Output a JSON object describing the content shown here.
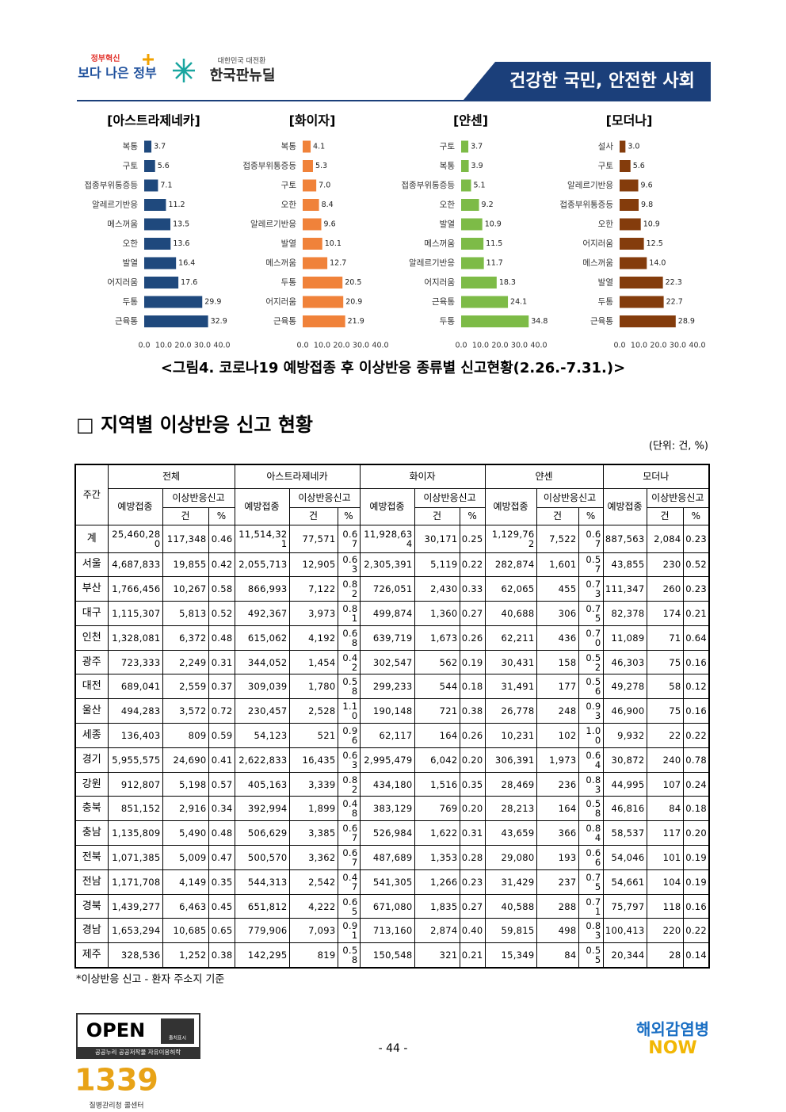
{
  "header": {
    "logo1_small": "정부혁신",
    "logo1": "보다 나은 정부",
    "logo2_small": "대한민국 대전환",
    "logo2": "한국판뉴딜",
    "slogan": "건강한 국민, 안전한 사회"
  },
  "chart_data": [
    {
      "type": "barh",
      "title": "[아스트라제네카]",
      "color": "#1f497d",
      "categories": [
        "복통",
        "구토",
        "접종부위통증등",
        "알레르기반응",
        "메스꺼움",
        "오한",
        "발열",
        "어지러움",
        "두통",
        "근육통"
      ],
      "values": [
        3.7,
        5.6,
        7.1,
        11.2,
        13.5,
        13.6,
        16.4,
        17.6,
        29.9,
        32.9
      ],
      "xlim": [
        0,
        40
      ],
      "xticks": [
        {
          "value": 0,
          "label": "0.0"
        },
        {
          "value": 10,
          "label": "10.0"
        },
        {
          "value": 20,
          "label": "20.0"
        },
        {
          "value": 30,
          "label": "30.0"
        },
        {
          "value": 40,
          "label": "40.0"
        }
      ]
    },
    {
      "type": "barh",
      "title": "[화이자]",
      "color": "#f0823a",
      "categories": [
        "복통",
        "접종부위통증등",
        "구토",
        "오한",
        "알레르기반응",
        "발열",
        "메스꺼움",
        "두통",
        "어지러움",
        "근육통"
      ],
      "values": [
        4.1,
        5.3,
        7,
        8.4,
        9.6,
        10.1,
        12.7,
        20.5,
        20.9,
        21.9
      ],
      "value_labels": [
        "4.1",
        "5.3",
        "7.0",
        "8.4",
        "9.6",
        "10.1",
        "12.7",
        "20.5",
        "20.9",
        "21.9"
      ],
      "xlim": [
        0,
        40
      ],
      "xticks": [
        {
          "value": 0,
          "label": "0.0"
        },
        {
          "value": 10,
          "label": "10.0"
        },
        {
          "value": 20,
          "label": "20.0"
        },
        {
          "value": 30,
          "label": "30.0"
        },
        {
          "value": 40,
          "label": "40.0"
        }
      ]
    },
    {
      "type": "barh",
      "title": "[얀센]",
      "color": "#7dbb47",
      "categories": [
        "구토",
        "복통",
        "접종부위통증등",
        "오한",
        "발열",
        "메스꺼움",
        "알레르기반응",
        "어지러움",
        "근육통",
        "두통"
      ],
      "values": [
        3.7,
        3.9,
        5.1,
        9.2,
        10.9,
        11.5,
        11.7,
        18.3,
        24.1,
        34.8
      ],
      "xlim": [
        0,
        40
      ],
      "xticks": [
        {
          "value": 0,
          "label": "0.0"
        },
        {
          "value": 10,
          "label": "10.0"
        },
        {
          "value": 20,
          "label": "20.0"
        },
        {
          "value": 30,
          "label": "30.0"
        },
        {
          "value": 40,
          "label": "40.0"
        }
      ]
    },
    {
      "type": "barh",
      "title": "[모더나]",
      "color": "#843c0c",
      "categories": [
        "설사",
        "구토",
        "알레르기반응",
        "접종부위통증등",
        "오한",
        "어지러움",
        "메스꺼움",
        "발열",
        "두통",
        "근육통"
      ],
      "values": [
        3,
        5.6,
        9.6,
        9.8,
        10.9,
        12.5,
        14,
        22.3,
        22.7,
        28.9
      ],
      "value_labels": [
        "3.0",
        "5.6",
        "9.6",
        "9.8",
        "10.9",
        "12.5",
        "14.0",
        "22.3",
        "22.7",
        "28.9"
      ],
      "xlim": [
        0,
        40
      ],
      "xticks": [
        {
          "value": 0,
          "label": "0.0"
        },
        {
          "value": 10,
          "label": "10.0"
        },
        {
          "value": 20,
          "label": "20.0"
        },
        {
          "value": 30,
          "label": "30.0"
        },
        {
          "value": 40,
          "label": "40.0"
        }
      ]
    }
  ],
  "caption": "<그림4. 코로나19 예방접종 후 이상반응 종류별 신고현황(2.26.-7.31.)>",
  "section_title": "□ 지역별 이상반응 신고 현황",
  "unit": "(단위: 건, %)",
  "table": {
    "corner": "주간",
    "groups": [
      "전체",
      "아스트라제네카",
      "화이자",
      "얀센",
      "모더나"
    ],
    "sub": [
      "예방접종",
      "이상반응신고"
    ],
    "subsub": [
      "건",
      "%"
    ],
    "rows": [
      [
        "계",
        "25,460,280",
        "117,348",
        "0.46",
        "11,514,321",
        "77,571",
        "0.67",
        "11,928,634",
        "30,171",
        "0.25",
        "1,129,762",
        "7,522",
        "0.67",
        "887,563",
        "2,084",
        "0.23"
      ],
      [
        "서울",
        "4,687,833",
        "19,855",
        "0.42",
        "2,055,713",
        "12,905",
        "0.63",
        "2,305,391",
        "5,119",
        "0.22",
        "282,874",
        "1,601",
        "0.57",
        "43,855",
        "230",
        "0.52"
      ],
      [
        "부산",
        "1,766,456",
        "10,267",
        "0.58",
        "866,993",
        "7,122",
        "0.82",
        "726,051",
        "2,430",
        "0.33",
        "62,065",
        "455",
        "0.73",
        "111,347",
        "260",
        "0.23"
      ],
      [
        "대구",
        "1,115,307",
        "5,813",
        "0.52",
        "492,367",
        "3,973",
        "0.81",
        "499,874",
        "1,360",
        "0.27",
        "40,688",
        "306",
        "0.75",
        "82,378",
        "174",
        "0.21"
      ],
      [
        "인천",
        "1,328,081",
        "6,372",
        "0.48",
        "615,062",
        "4,192",
        "0.68",
        "639,719",
        "1,673",
        "0.26",
        "62,211",
        "436",
        "0.70",
        "11,089",
        "71",
        "0.64"
      ],
      [
        "광주",
        "723,333",
        "2,249",
        "0.31",
        "344,052",
        "1,454",
        "0.42",
        "302,547",
        "562",
        "0.19",
        "30,431",
        "158",
        "0.52",
        "46,303",
        "75",
        "0.16"
      ],
      [
        "대전",
        "689,041",
        "2,559",
        "0.37",
        "309,039",
        "1,780",
        "0.58",
        "299,233",
        "544",
        "0.18",
        "31,491",
        "177",
        "0.56",
        "49,278",
        "58",
        "0.12"
      ],
      [
        "울산",
        "494,283",
        "3,572",
        "0.72",
        "230,457",
        "2,528",
        "1.10",
        "190,148",
        "721",
        "0.38",
        "26,778",
        "248",
        "0.93",
        "46,900",
        "75",
        "0.16"
      ],
      [
        "세종",
        "136,403",
        "809",
        "0.59",
        "54,123",
        "521",
        "0.96",
        "62,117",
        "164",
        "0.26",
        "10,231",
        "102",
        "1.00",
        "9,932",
        "22",
        "0.22"
      ],
      [
        "경기",
        "5,955,575",
        "24,690",
        "0.41",
        "2,622,833",
        "16,435",
        "0.63",
        "2,995,479",
        "6,042",
        "0.20",
        "306,391",
        "1,973",
        "0.64",
        "30,872",
        "240",
        "0.78"
      ],
      [
        "강원",
        "912,807",
        "5,198",
        "0.57",
        "405,163",
        "3,339",
        "0.82",
        "434,180",
        "1,516",
        "0.35",
        "28,469",
        "236",
        "0.83",
        "44,995",
        "107",
        "0.24"
      ],
      [
        "충북",
        "851,152",
        "2,916",
        "0.34",
        "392,994",
        "1,899",
        "0.48",
        "383,129",
        "769",
        "0.20",
        "28,213",
        "164",
        "0.58",
        "46,816",
        "84",
        "0.18"
      ],
      [
        "충남",
        "1,135,809",
        "5,490",
        "0.48",
        "506,629",
        "3,385",
        "0.67",
        "526,984",
        "1,622",
        "0.31",
        "43,659",
        "366",
        "0.84",
        "58,537",
        "117",
        "0.20"
      ],
      [
        "전북",
        "1,071,385",
        "5,009",
        "0.47",
        "500,570",
        "3,362",
        "0.67",
        "487,689",
        "1,353",
        "0.28",
        "29,080",
        "193",
        "0.66",
        "54,046",
        "101",
        "0.19"
      ],
      [
        "전남",
        "1,171,708",
        "4,149",
        "0.35",
        "544,313",
        "2,542",
        "0.47",
        "541,305",
        "1,266",
        "0.23",
        "31,429",
        "237",
        "0.75",
        "54,661",
        "104",
        "0.19"
      ],
      [
        "경북",
        "1,439,277",
        "6,463",
        "0.45",
        "651,812",
        "4,222",
        "0.65",
        "671,080",
        "1,835",
        "0.27",
        "40,588",
        "288",
        "0.71",
        "75,797",
        "118",
        "0.16"
      ],
      [
        "경남",
        "1,653,294",
        "10,685",
        "0.65",
        "779,906",
        "7,093",
        "0.91",
        "713,160",
        "2,874",
        "0.40",
        "59,815",
        "498",
        "0.83",
        "100,413",
        "220",
        "0.22"
      ],
      [
        "제주",
        "328,536",
        "1,252",
        "0.38",
        "142,295",
        "819",
        "0.58",
        "150,548",
        "321",
        "0.21",
        "15,349",
        "84",
        "0.55",
        "20,344",
        "28",
        "0.14"
      ]
    ]
  },
  "footnote": "*이상반응 신고 - 환자 주소지 기준",
  "footer": {
    "open": "OPEN",
    "open_sub": "출처표시",
    "open_caption": "공공누리 공공저작물 자유이용허락",
    "page": "- 44 -",
    "callcenter_number": "1339",
    "callcenter": "질병관리청 콜센터",
    "right_logo": "해외감염병",
    "right_logo_sub": "NOW"
  }
}
